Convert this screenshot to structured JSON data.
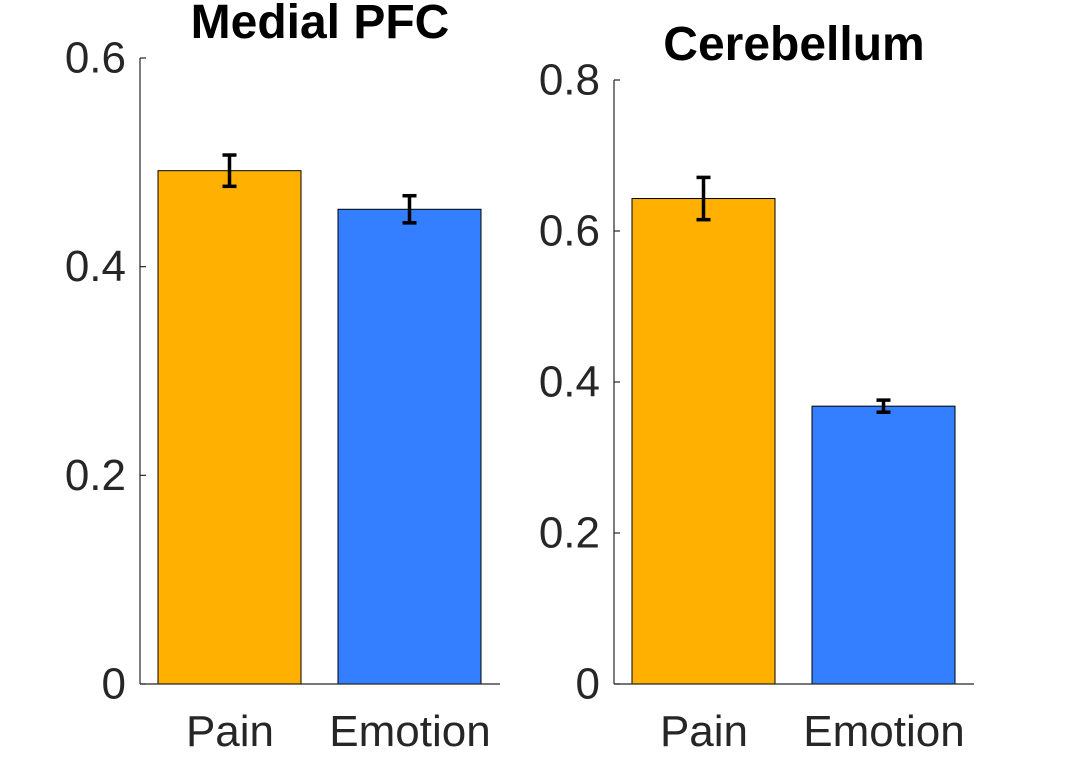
{
  "chart_data": [
    {
      "type": "bar",
      "title": "Medial PFC",
      "categories": [
        "Pain",
        "Emotion"
      ],
      "values": [
        0.492,
        0.455
      ],
      "errors": [
        0.015,
        0.013
      ],
      "ylim": [
        0,
        0.6
      ],
      "yticks": [
        0,
        0.2,
        0.4,
        0.6
      ],
      "ytick_labels": [
        "0",
        "0.2",
        "0.4",
        "0.6"
      ],
      "colors": [
        "#FFB000",
        "#337FFF"
      ],
      "grid": false
    },
    {
      "type": "bar",
      "title": "Cerebellum",
      "categories": [
        "Pain",
        "Emotion"
      ],
      "values": [
        0.643,
        0.368
      ],
      "errors": [
        0.028,
        0.008
      ],
      "ylim": [
        0,
        0.8
      ],
      "yticks": [
        0,
        0.2,
        0.4,
        0.6,
        0.8
      ],
      "ytick_labels": [
        "0",
        "0.2",
        "0.4",
        "0.6",
        "0.8"
      ],
      "colors": [
        "#FFB000",
        "#337FFF"
      ],
      "grid": false
    }
  ]
}
